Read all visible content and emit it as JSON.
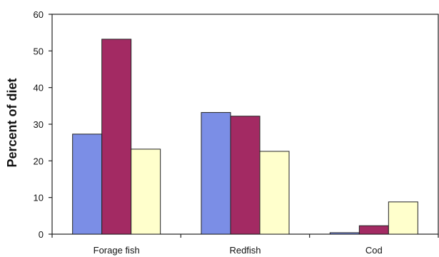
{
  "chart_data": {
    "type": "bar",
    "title": "",
    "xlabel": "",
    "ylabel": "Percent of diet",
    "ylim": [
      0,
      60
    ],
    "yticks": [
      0,
      10,
      20,
      30,
      40,
      50,
      60
    ],
    "grid": false,
    "legend": "none",
    "categories": [
      "Forage fish",
      "Redfish",
      "Cod"
    ],
    "series": [
      {
        "color": "#7b8ee6",
        "values": [
          27.3,
          33.2,
          0.4
        ]
      },
      {
        "color": "#a32a63",
        "values": [
          53.2,
          32.2,
          2.3
        ]
      },
      {
        "color": "#ffffcc",
        "values": [
          23.2,
          22.6,
          8.8
        ]
      }
    ]
  }
}
